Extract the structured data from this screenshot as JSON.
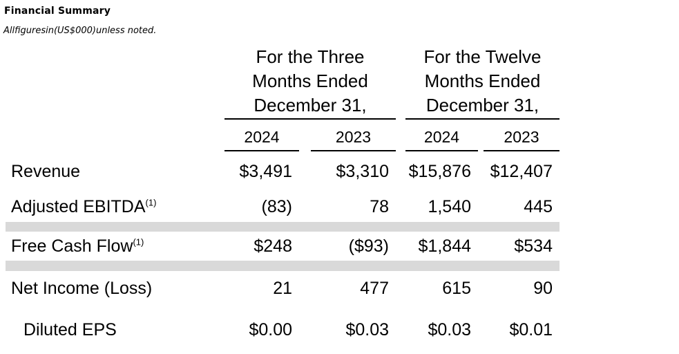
{
  "page": {
    "title": "Financial Summary",
    "subtitle": "Allfiguresin(US$000)unless noted."
  },
  "table": {
    "col_groups": [
      {
        "lines": [
          "For the Three",
          "Months Ended",
          "December 31,"
        ]
      },
      {
        "lines": [
          "For the Twelve",
          "Months Ended",
          "December 31,"
        ]
      }
    ],
    "year_cols": [
      "2024",
      "2023",
      "2024",
      "2023"
    ],
    "rows": [
      {
        "label": "Revenue",
        "sup": "",
        "values": [
          "$3,491",
          "$3,310",
          "$15,876",
          "$12,407"
        ]
      },
      {
        "label": "Adjusted EBITDA",
        "sup": "(1)",
        "values": [
          "(83)",
          "78",
          "1,540",
          "445"
        ]
      },
      {
        "label": "Free Cash Flow",
        "sup": "(1)",
        "values": [
          "$248",
          "($93)",
          "$1,844",
          "$534"
        ]
      },
      {
        "label": "Net Income (Loss)",
        "sup": "",
        "values": [
          "21",
          "477",
          "615",
          "90"
        ]
      },
      {
        "label": "Diluted EPS",
        "sup": "",
        "values": [
          "$0.00",
          "$0.03",
          "$0.03",
          "$0.01"
        ]
      }
    ]
  },
  "colors": {
    "background": "#ffffff",
    "text": "#000000",
    "rule": "#000000",
    "stripe": "#d9d9d9"
  }
}
